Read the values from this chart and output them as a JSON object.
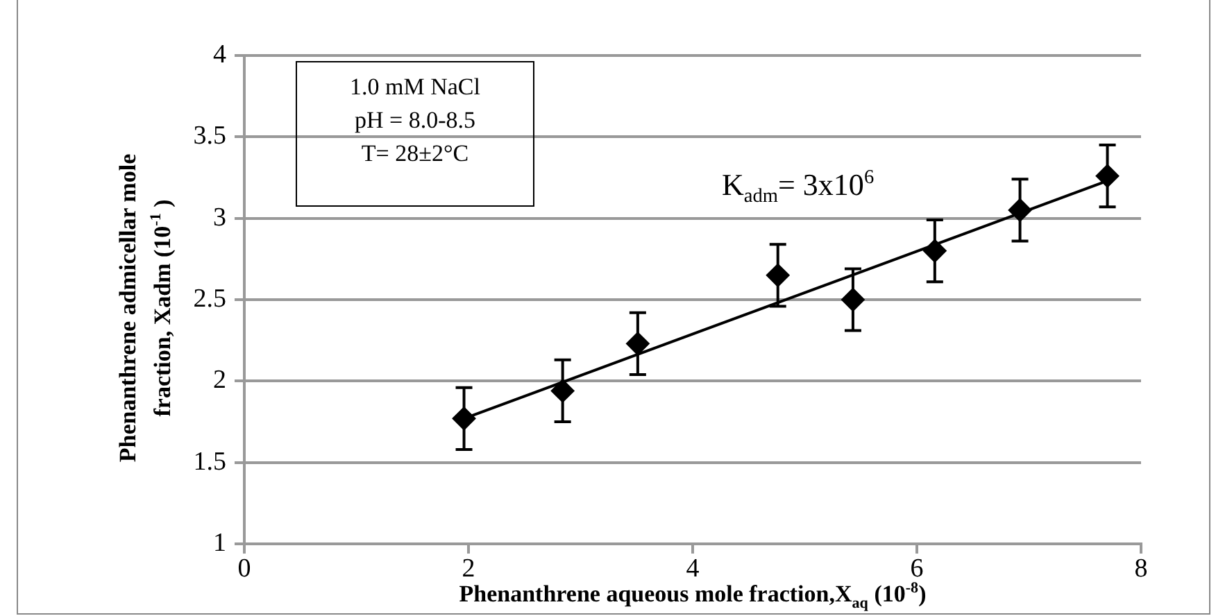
{
  "chart_data": {
    "type": "scatter",
    "xlabel": "Phenanthrene aqueous mole fraction,X$_{aq}$   (10$^{-8}$)",
    "ylabel": "Phenanthrene admicellar mole fraction, Xadm (10$^{-1}$ )",
    "x": [
      1.96,
      2.84,
      3.51,
      4.76,
      5.43,
      6.16,
      6.92,
      7.7
    ],
    "series": [
      {
        "color": "#000000",
        "marker": "diamond",
        "values": [
          1.77,
          1.94,
          2.23,
          2.65,
          2.5,
          2.8,
          3.05,
          3.26
        ],
        "errors": [
          0.19,
          0.19,
          0.19,
          0.19,
          0.19,
          0.19,
          0.19,
          0.19
        ]
      },
      {
        "type": "line",
        "color": "#000000",
        "marker": "none",
        "x": [
          1.96,
          7.7
        ],
        "values": [
          1.77,
          3.23
        ]
      }
    ],
    "xlim": [
      0,
      8
    ],
    "xticks": [
      0,
      2,
      4,
      6,
      8
    ],
    "ylim": [
      1,
      4
    ],
    "yticks": [
      1,
      1.5,
      2,
      2.5,
      3,
      3.5,
      4
    ],
    "grid": "y",
    "legend": false,
    "annotations": [
      "1.0 mM NaCl\npH = 8.0-8.5\nT= 28±2°C",
      "K$_{adm}$= 3x10$^{6}$"
    ]
  }
}
